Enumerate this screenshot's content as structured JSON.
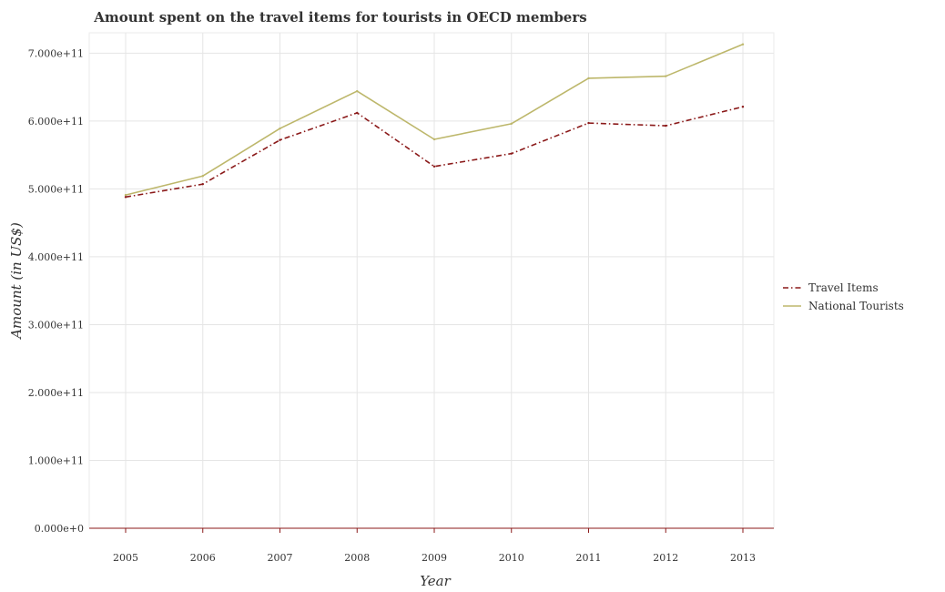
{
  "chart_data": {
    "type": "line",
    "title": "Amount spent on the travel items for tourists in OECD members",
    "xlabel": "Year",
    "ylabel": "Amount (in US$)",
    "categories": [
      "2005",
      "2006",
      "2007",
      "2008",
      "2009",
      "2010",
      "2011",
      "2012",
      "2013"
    ],
    "ylim": [
      0,
      730000000000
    ],
    "yticks": [
      0,
      100000000000,
      200000000000,
      300000000000,
      400000000000,
      500000000000,
      600000000000,
      700000000000
    ],
    "ytick_labels": [
      "0.000e+0",
      "1.000e+11",
      "2.000e+11",
      "3.000e+11",
      "4.000e+11",
      "5.000e+11",
      "6.000e+11",
      "7.000e+11"
    ],
    "grid": true,
    "legend_position": "right",
    "series": [
      {
        "name": "Travel Items",
        "color": "#8b1a1a",
        "dash": "dashdot",
        "values": [
          488000000000,
          507000000000,
          572000000000,
          612000000000,
          533000000000,
          552000000000,
          597000000000,
          593000000000,
          621000000000
        ]
      },
      {
        "name": "National Tourists",
        "color": "#bdb76b",
        "dash": "solid",
        "values": [
          491000000000,
          519000000000,
          589000000000,
          644000000000,
          573000000000,
          596000000000,
          663000000000,
          666000000000,
          713000000000
        ]
      }
    ]
  }
}
